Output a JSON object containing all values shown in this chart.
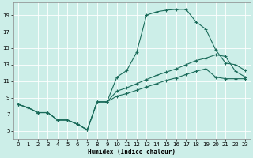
{
  "background_color": "#cceee8",
  "grid_color": "#ffffff",
  "line_color": "#1a6b5a",
  "xlabel": "Humidex (Indice chaleur)",
  "xlim": [
    -0.5,
    23.5
  ],
  "ylim": [
    4.0,
    20.5
  ],
  "xticks": [
    0,
    1,
    2,
    3,
    4,
    5,
    6,
    7,
    8,
    9,
    10,
    11,
    12,
    13,
    14,
    15,
    16,
    17,
    18,
    19,
    20,
    21,
    22,
    23
  ],
  "yticks": [
    5,
    7,
    9,
    11,
    13,
    15,
    17,
    19
  ],
  "curve1_x": [
    0,
    1,
    2,
    3,
    4,
    5,
    6,
    7,
    8,
    9,
    10,
    11,
    12,
    13,
    14,
    15,
    16,
    17,
    18,
    19,
    20,
    21,
    22,
    23
  ],
  "curve1_y": [
    8.2,
    7.8,
    7.2,
    7.2,
    6.3,
    6.3,
    5.8,
    5.1,
    8.5,
    8.5,
    11.5,
    12.3,
    14.5,
    19.0,
    19.4,
    19.6,
    19.7,
    19.7,
    18.2,
    17.3,
    14.8,
    13.2,
    13.0,
    12.3
  ],
  "curve2_x": [
    0,
    1,
    2,
    3,
    4,
    5,
    6,
    7,
    8,
    9,
    10,
    11,
    12,
    13,
    14,
    15,
    16,
    17,
    18,
    19,
    20,
    21,
    22,
    23
  ],
  "curve2_y": [
    8.2,
    7.8,
    7.2,
    7.2,
    6.3,
    6.3,
    5.8,
    5.1,
    8.5,
    8.5,
    9.8,
    10.2,
    10.7,
    11.2,
    11.7,
    12.1,
    12.5,
    13.0,
    13.5,
    13.8,
    14.2,
    14.0,
    12.2,
    11.5
  ],
  "curve3_x": [
    0,
    1,
    2,
    3,
    4,
    5,
    6,
    7,
    8,
    9,
    10,
    11,
    12,
    13,
    14,
    15,
    16,
    17,
    18,
    19,
    20,
    21,
    22,
    23
  ],
  "curve3_y": [
    8.2,
    7.8,
    7.2,
    7.2,
    6.3,
    6.3,
    5.8,
    5.1,
    8.5,
    8.5,
    9.2,
    9.5,
    9.9,
    10.3,
    10.7,
    11.1,
    11.4,
    11.8,
    12.2,
    12.5,
    11.5,
    11.3,
    11.3,
    11.3
  ]
}
